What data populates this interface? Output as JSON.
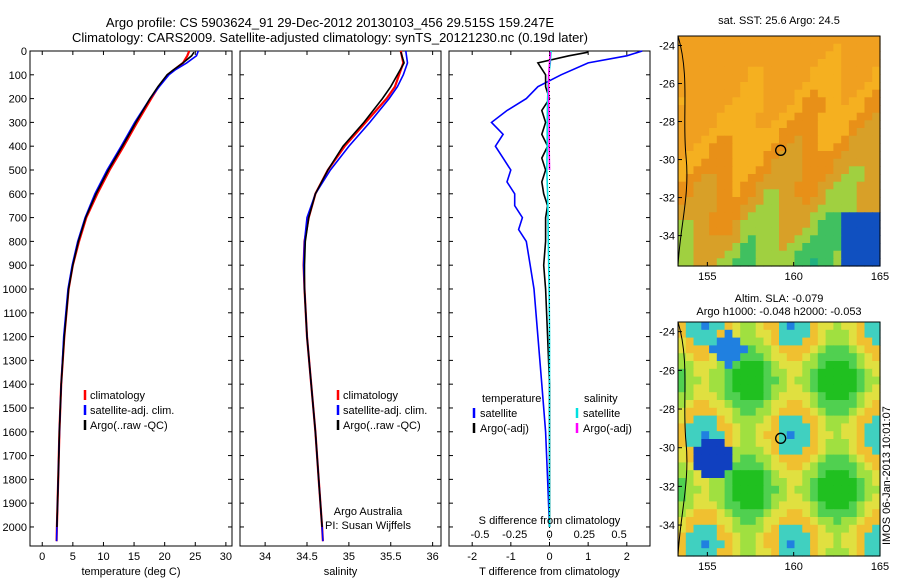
{
  "header": {
    "line1": "Argo profile: CS 5903624_91 29-Dec-2012 20130103_456 29.515S 159.247E",
    "line2": "Climatology: CARS2009. Satellite-adjusted climatology: synTS_20121230.nc (0.19d later)"
  },
  "colors": {
    "climatology": "#ff0000",
    "satellite": "#0000ff",
    "argo": "#000000",
    "cyan": "#00e0e0",
    "magenta": "#ff00ff"
  },
  "chart_data": [
    {
      "type": "line",
      "id": "temperature",
      "xlabel": "temperature (deg C)",
      "ylabel": "",
      "xlim": [
        -2,
        31
      ],
      "ylim": [
        2080,
        0
      ],
      "xticks": [
        0,
        5,
        10,
        15,
        20,
        25,
        30
      ],
      "yticks": [
        0,
        100,
        200,
        300,
        400,
        500,
        600,
        700,
        800,
        900,
        1000,
        1100,
        1200,
        1300,
        1400,
        1500,
        1600,
        1700,
        1800,
        1900,
        2000
      ],
      "legend": [
        "climatology",
        "satellite-adj. clim.",
        "Argo(..raw -QC)"
      ],
      "series": [
        {
          "name": "climatology",
          "color": "#ff0000",
          "depth": [
            0,
            20,
            50,
            80,
            100,
            150,
            200,
            300,
            400,
            500,
            600,
            700,
            800,
            900,
            1000,
            1200,
            1400,
            1600,
            1800,
            2000,
            2060
          ],
          "values": [
            24.0,
            23.7,
            23.0,
            21.5,
            20.5,
            19.0,
            17.8,
            15.5,
            13.3,
            11.0,
            9.0,
            7.2,
            6.0,
            5.0,
            4.3,
            3.6,
            3.1,
            2.8,
            2.6,
            2.4,
            2.35
          ]
        },
        {
          "name": "satellite-adj. clim.",
          "color": "#0000ff",
          "depth": [
            0,
            20,
            50,
            80,
            100,
            150,
            200,
            300,
            400,
            500,
            600,
            700,
            800,
            900,
            1000,
            1200,
            1400,
            1600,
            1800,
            2000,
            2060
          ],
          "values": [
            25.5,
            25.2,
            23.6,
            21.7,
            20.7,
            19.1,
            17.6,
            15.1,
            12.9,
            10.6,
            8.6,
            7.0,
            5.8,
            4.9,
            4.2,
            3.5,
            3.1,
            2.8,
            2.6,
            2.4,
            2.35
          ]
        },
        {
          "name": "Argo(..raw -QC)",
          "color": "#000000",
          "depth": [
            5,
            20,
            50,
            80,
            100,
            150,
            200,
            300,
            400,
            500,
            600,
            700,
            800,
            900,
            1000,
            1200,
            1400,
            1600,
            1800,
            2000
          ],
          "values": [
            24.8,
            24.4,
            23.0,
            21.4,
            20.4,
            18.9,
            17.6,
            15.3,
            13.1,
            10.8,
            8.8,
            7.1,
            5.9,
            5.0,
            4.3,
            3.6,
            3.1,
            2.8,
            2.6,
            2.4
          ]
        }
      ]
    },
    {
      "type": "line",
      "id": "salinity",
      "xlabel": "salinity",
      "ylabel": "",
      "xlim": [
        33.7,
        36.1
      ],
      "ylim": [
        2080,
        0
      ],
      "xticks": [
        34,
        34.5,
        35,
        35.5,
        36
      ],
      "legend": [
        "climatology",
        "satellite-adj. clim.",
        "Argo(..raw -QC)"
      ],
      "annotations": [
        "Argo Australia",
        "PI: Susan Wijffels"
      ],
      "series": [
        {
          "name": "climatology",
          "color": "#ff0000",
          "depth": [
            0,
            50,
            100,
            150,
            200,
            300,
            400,
            500,
            600,
            700,
            800,
            900,
            1000,
            1200,
            1400,
            1600,
            1800,
            2000,
            2060
          ],
          "values": [
            35.62,
            35.65,
            35.6,
            35.55,
            35.45,
            35.2,
            34.95,
            34.75,
            34.6,
            34.52,
            34.47,
            34.46,
            34.47,
            34.5,
            34.55,
            34.6,
            34.64,
            34.68,
            34.69
          ]
        },
        {
          "name": "satellite-adj. clim.",
          "color": "#0000ff",
          "depth": [
            0,
            50,
            100,
            150,
            200,
            300,
            400,
            500,
            600,
            700,
            800,
            900,
            1000,
            1200,
            1400,
            1600,
            1800,
            2000,
            2060
          ],
          "values": [
            35.68,
            35.7,
            35.65,
            35.58,
            35.48,
            35.25,
            35.0,
            34.78,
            34.6,
            34.5,
            34.47,
            34.46,
            34.47,
            34.5,
            34.55,
            34.6,
            34.64,
            34.68,
            34.69
          ]
        },
        {
          "name": "Argo(..raw -QC)",
          "color": "#000000",
          "depth": [
            5,
            50,
            100,
            150,
            200,
            300,
            400,
            500,
            600,
            700,
            800,
            900,
            1000,
            1200,
            1400,
            1600,
            1800,
            2000
          ],
          "values": [
            35.62,
            35.66,
            35.58,
            35.5,
            35.4,
            35.18,
            34.93,
            34.75,
            34.6,
            34.52,
            34.48,
            34.47,
            34.47,
            34.5,
            34.55,
            34.6,
            34.64,
            34.68
          ]
        }
      ]
    },
    {
      "type": "line",
      "id": "difference",
      "xlabel": "T difference from climatology",
      "xlabel2": "S difference from climatology",
      "xlim": [
        -2.6,
        2.6
      ],
      "ylim": [
        2080,
        0
      ],
      "xticks": [
        -2,
        -1,
        0,
        1,
        2
      ],
      "xticks2": [
        "-0.5",
        "-0.25",
        "0",
        "0.25",
        "0.5"
      ],
      "legend_headers": [
        "temperature",
        "salinity"
      ],
      "legend": [
        "satellite",
        "Argo(-adj)",
        "satellite",
        "Argo(-adj)"
      ],
      "series": [
        {
          "name": "temperature satellite",
          "color": "#0000ff",
          "depth": [
            0,
            20,
            50,
            100,
            150,
            200,
            250,
            300,
            350,
            400,
            450,
            500,
            550,
            600,
            650,
            700,
            750,
            800,
            900,
            1000,
            1200,
            1400,
            1600,
            1800,
            2000
          ],
          "values": [
            2.4,
            2.0,
            1.0,
            0.3,
            -0.3,
            -0.6,
            -1.1,
            -1.5,
            -1.2,
            -1.4,
            -1.2,
            -1.0,
            -1.1,
            -0.9,
            -0.9,
            -0.7,
            -0.8,
            -0.6,
            -0.5,
            -0.4,
            -0.3,
            -0.2,
            -0.1,
            -0.05,
            0.0
          ]
        },
        {
          "name": "temperature Argo(-adj)",
          "color": "#000000",
          "depth": [
            5,
            20,
            50,
            100,
            150,
            200,
            250,
            300,
            350,
            400,
            450,
            500,
            550,
            600,
            650,
            700,
            800,
            900,
            1000,
            1200,
            1400,
            1600,
            1800,
            2000
          ],
          "values": [
            1.0,
            0.5,
            -0.3,
            -0.1,
            -0.1,
            0.0,
            -0.2,
            -0.1,
            -0.2,
            -0.05,
            -0.2,
            -0.1,
            -0.2,
            -0.15,
            -0.05,
            -0.1,
            -0.1,
            -0.15,
            -0.1,
            -0.05,
            0.0,
            0.0,
            0.0,
            0.0
          ]
        },
        {
          "name": "salinity satellite",
          "color": "#00e0e0",
          "depth": [
            0,
            50,
            100,
            200,
            300,
            400,
            500,
            600,
            700,
            800,
            900,
            1000,
            1200,
            1400,
            1600,
            1800,
            2000
          ],
          "values": [
            0.04,
            0.02,
            -0.02,
            -0.05,
            -0.06,
            -0.06,
            -0.07,
            -0.05,
            -0.04,
            -0.03,
            -0.02,
            -0.01,
            0.0,
            0.0,
            0.0,
            0.0,
            0.0
          ]
        },
        {
          "name": "salinity Argo(-adj)",
          "color": "#ff00ff",
          "depth": [
            5,
            50,
            100,
            200,
            300,
            400,
            500
          ],
          "values": [
            0.02,
            0.0,
            -0.02,
            -0.02,
            -0.01,
            -0.01,
            0.0
          ]
        }
      ]
    },
    {
      "type": "heatmap",
      "id": "sst-map",
      "title": "sat. SST: 25.6 Argo: 24.5",
      "xlim": [
        153.3,
        165
      ],
      "ylim": [
        -35.6,
        -23.5
      ],
      "xticks": [
        155,
        160,
        165
      ],
      "yticks": [
        -24,
        -26,
        -28,
        -30,
        -32,
        -34
      ],
      "marker": {
        "lon": 159.247,
        "lat": -29.515
      }
    },
    {
      "type": "heatmap",
      "id": "sla-map",
      "title": "Altim. SLA: -0.079",
      "subtitle": "Argo h1000: -0.048 h2000: -0.053",
      "xlim": [
        153.3,
        165
      ],
      "ylim": [
        -35.6,
        -23.5
      ],
      "xticks": [
        155,
        160,
        165
      ],
      "yticks": [
        -24,
        -26,
        -28,
        -30,
        -32,
        -34
      ],
      "marker": {
        "lon": 159.247,
        "lat": -29.515
      }
    }
  ],
  "footer": {
    "stamp": "IMOS 06-Jan-2013 10:01:07"
  }
}
